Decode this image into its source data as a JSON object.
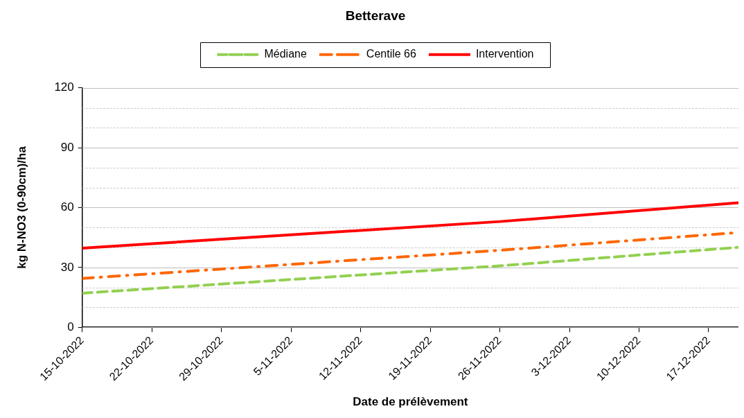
{
  "chart_data": {
    "type": "line",
    "title": "Betterave",
    "xlabel": "Date de prélèvement",
    "ylabel": "kg N-NO3 (0-90cm)/ha",
    "x": [
      "2022-10-15",
      "2022-11-26",
      "2022-12-20"
    ],
    "series": [
      {
        "name": "Médiane",
        "color": "#92d050",
        "line_style": "dashed",
        "values": [
          17.1,
          30.8,
          40.1
        ]
      },
      {
        "name": "Centile 66",
        "color": "#ff6600",
        "line_style": "dashdot",
        "values": [
          24.5,
          38.6,
          47.5
        ]
      },
      {
        "name": "Intervention",
        "color": "#ff0000",
        "line_style": "solid",
        "values": [
          39.7,
          53,
          62.4
        ]
      }
    ],
    "xlim": [
      "2022-10-15",
      "2022-12-20"
    ],
    "xticks": [
      {
        "value": "2022-10-15",
        "label": "15-10-2022"
      },
      {
        "value": "2022-10-22",
        "label": "22-10-2022"
      },
      {
        "value": "2022-10-29",
        "label": "29-10-2022"
      },
      {
        "value": "2022-11-05",
        "label": "5-11-2022"
      },
      {
        "value": "2022-11-12",
        "label": "12-11-2022"
      },
      {
        "value": "2022-11-19",
        "label": "19-11-2022"
      },
      {
        "value": "2022-11-26",
        "label": "26-11-2022"
      },
      {
        "value": "2022-12-03",
        "label": "3-12-2022"
      },
      {
        "value": "2022-12-10",
        "label": "10-12-2022"
      },
      {
        "value": "2022-12-17",
        "label": "17-12-2022"
      }
    ],
    "ylim": [
      0,
      120
    ],
    "yticks": [
      0,
      {
        "value": 10,
        "label": null
      },
      {
        "value": 20,
        "label": null
      },
      30,
      {
        "value": 40,
        "label": null
      },
      {
        "value": 50,
        "label": null
      },
      60,
      {
        "value": 70,
        "label": null
      },
      {
        "value": 80,
        "label": null
      },
      90,
      {
        "value": 100,
        "label": null
      },
      {
        "value": 110,
        "label": null
      },
      120
    ],
    "grid": "y",
    "legend": "top",
    "marker": "none"
  }
}
